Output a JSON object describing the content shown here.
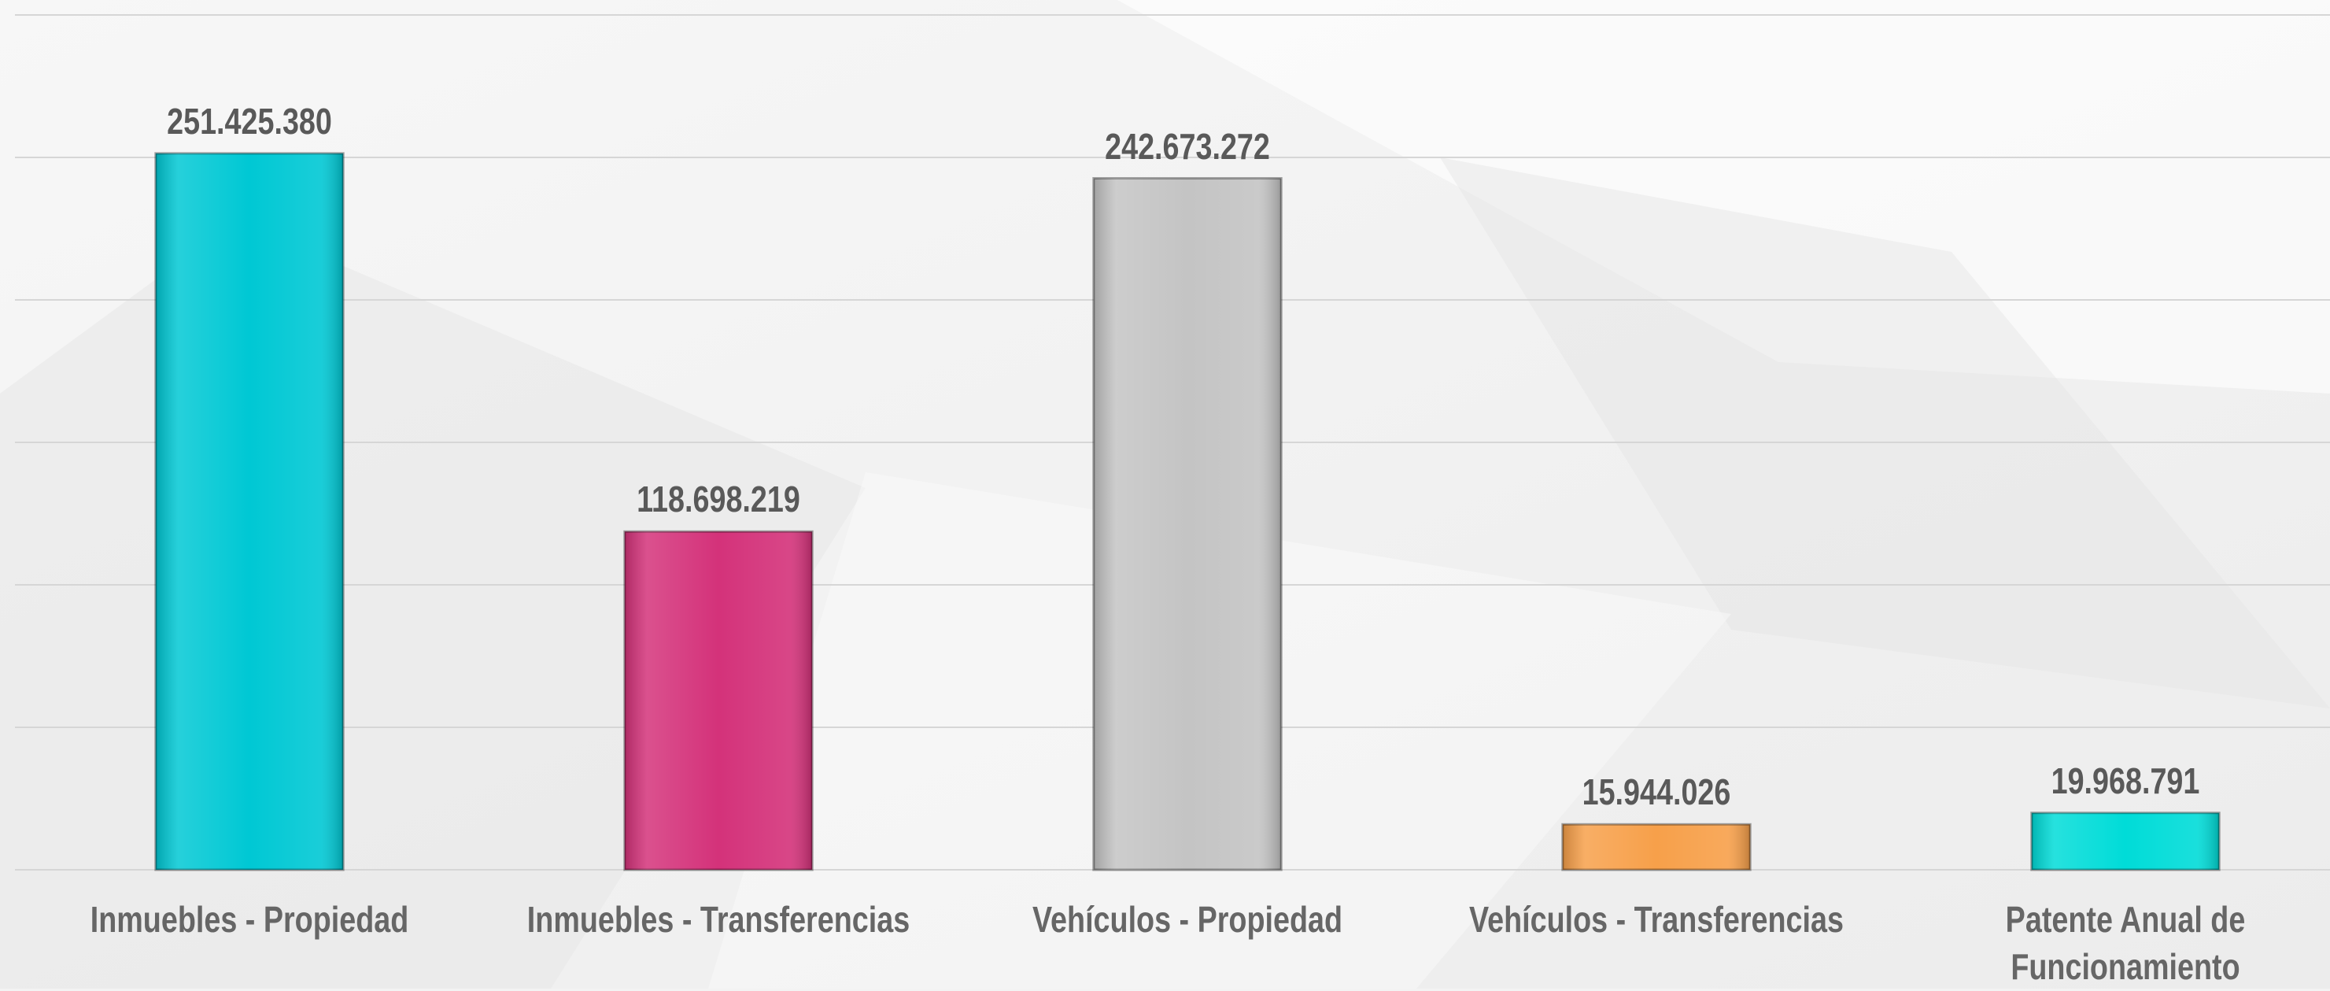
{
  "chart_data": {
    "type": "bar",
    "categories": [
      "Inmuebles - Propiedad",
      "Inmuebles - Transferencias",
      "Vehículos - Propiedad",
      "Vehículos - Transferencias",
      "Patente Anual de Funcionamiento"
    ],
    "values": [
      251425380,
      118698219,
      242673272,
      15944026,
      19968791
    ],
    "value_labels": [
      "251.425.380",
      "118.698.219",
      "242.673.272",
      "15.944.026",
      "19.968.791"
    ],
    "colors": [
      "#00c8d4",
      "#d4327a",
      "#c4c4c4",
      "#f7a04a",
      "#00dcd8"
    ],
    "ylim": [
      0,
      300000000
    ],
    "yticks": [
      0,
      50000000,
      100000000,
      150000000,
      200000000,
      250000000,
      300000000
    ],
    "grid": true
  }
}
